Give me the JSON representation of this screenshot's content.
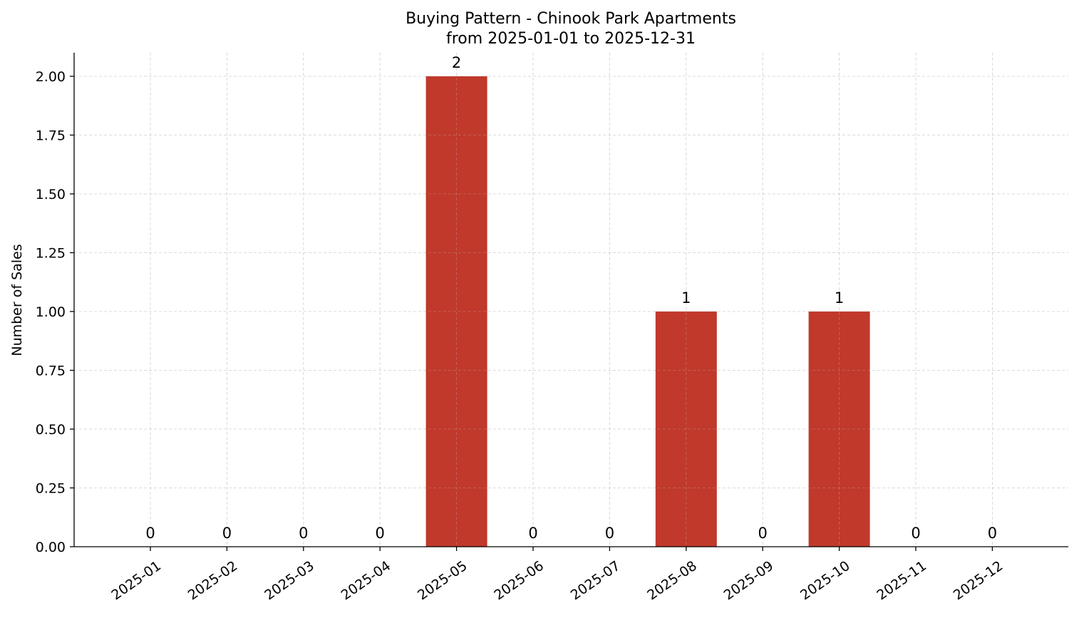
{
  "chart_data": {
    "type": "bar",
    "title": "Buying Pattern - Chinook Park Apartments",
    "subtitle": "from 2025-01-01 to 2025-12-31",
    "xlabel": "",
    "ylabel": "Number of Sales",
    "categories": [
      "2025-01",
      "2025-02",
      "2025-03",
      "2025-04",
      "2025-05",
      "2025-06",
      "2025-07",
      "2025-08",
      "2025-09",
      "2025-10",
      "2025-11",
      "2025-12"
    ],
    "values": [
      0,
      0,
      0,
      0,
      2,
      0,
      0,
      1,
      0,
      1,
      0,
      0
    ],
    "data_labels": [
      "0",
      "0",
      "0",
      "0",
      "2",
      "0",
      "0",
      "1",
      "0",
      "1",
      "0",
      "0"
    ],
    "ylim": [
      0,
      2.1
    ],
    "yticks": [
      0,
      0.25,
      0.5,
      0.75,
      1.0,
      1.25,
      1.5,
      1.75,
      2.0
    ],
    "ytick_labels": [
      "0.00",
      "0.25",
      "0.50",
      "0.75",
      "1.00",
      "1.25",
      "1.50",
      "1.75",
      "2.00"
    ],
    "grid": true,
    "legend": "none",
    "bar_color": "#c0392b"
  }
}
